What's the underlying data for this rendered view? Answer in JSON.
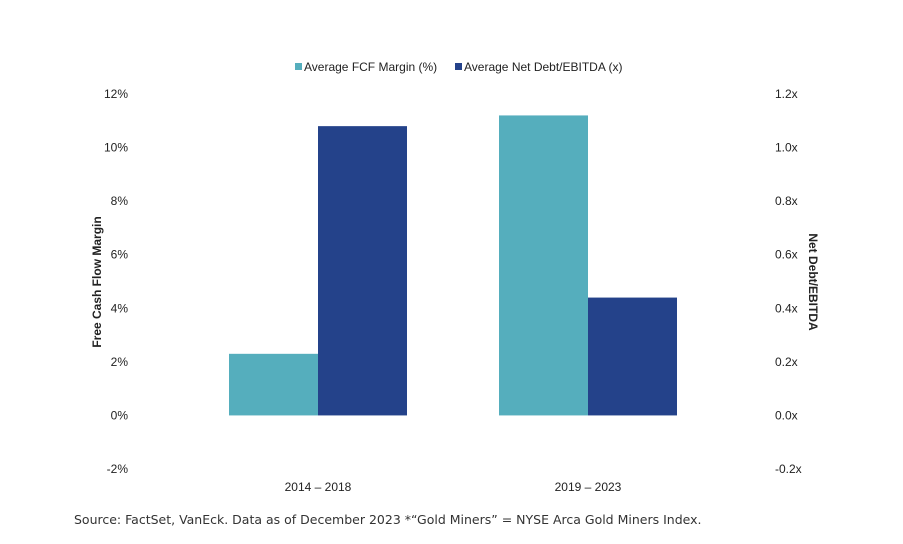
{
  "chart_data": {
    "type": "bar",
    "categories": [
      "2014 – 2018",
      "2019 – 2023"
    ],
    "series": [
      {
        "name": "Average FCF Margin (%)",
        "axis": "left",
        "color": "#55aebd",
        "values": [
          2.3,
          11.2
        ]
      },
      {
        "name": "Average Net Debt/EBITDA (x)",
        "axis": "right",
        "color": "#24428a",
        "values": [
          1.08,
          0.44
        ]
      }
    ],
    "ylabel": "Free Cash Flow Margin",
    "y2label": "Net Debt/EBITDA",
    "ylim": [
      -2,
      12
    ],
    "y2lim": [
      -0.2,
      1.2
    ],
    "yticks": [
      "12%",
      "10%",
      "8%",
      "6%",
      "4%",
      "2%",
      "0%",
      "-2%"
    ],
    "y2ticks": [
      "1.2x",
      "1.0x",
      "0.8x",
      "0.6x",
      "0.4x",
      "0.2x",
      "0.0x",
      "-0.2x"
    ],
    "legend_position": "top-center",
    "grid": false
  },
  "source_note": "Source: FactSet, VanEck. Data as of December 2023 *“Gold Miners” = NYSE Arca Gold Miners Index."
}
